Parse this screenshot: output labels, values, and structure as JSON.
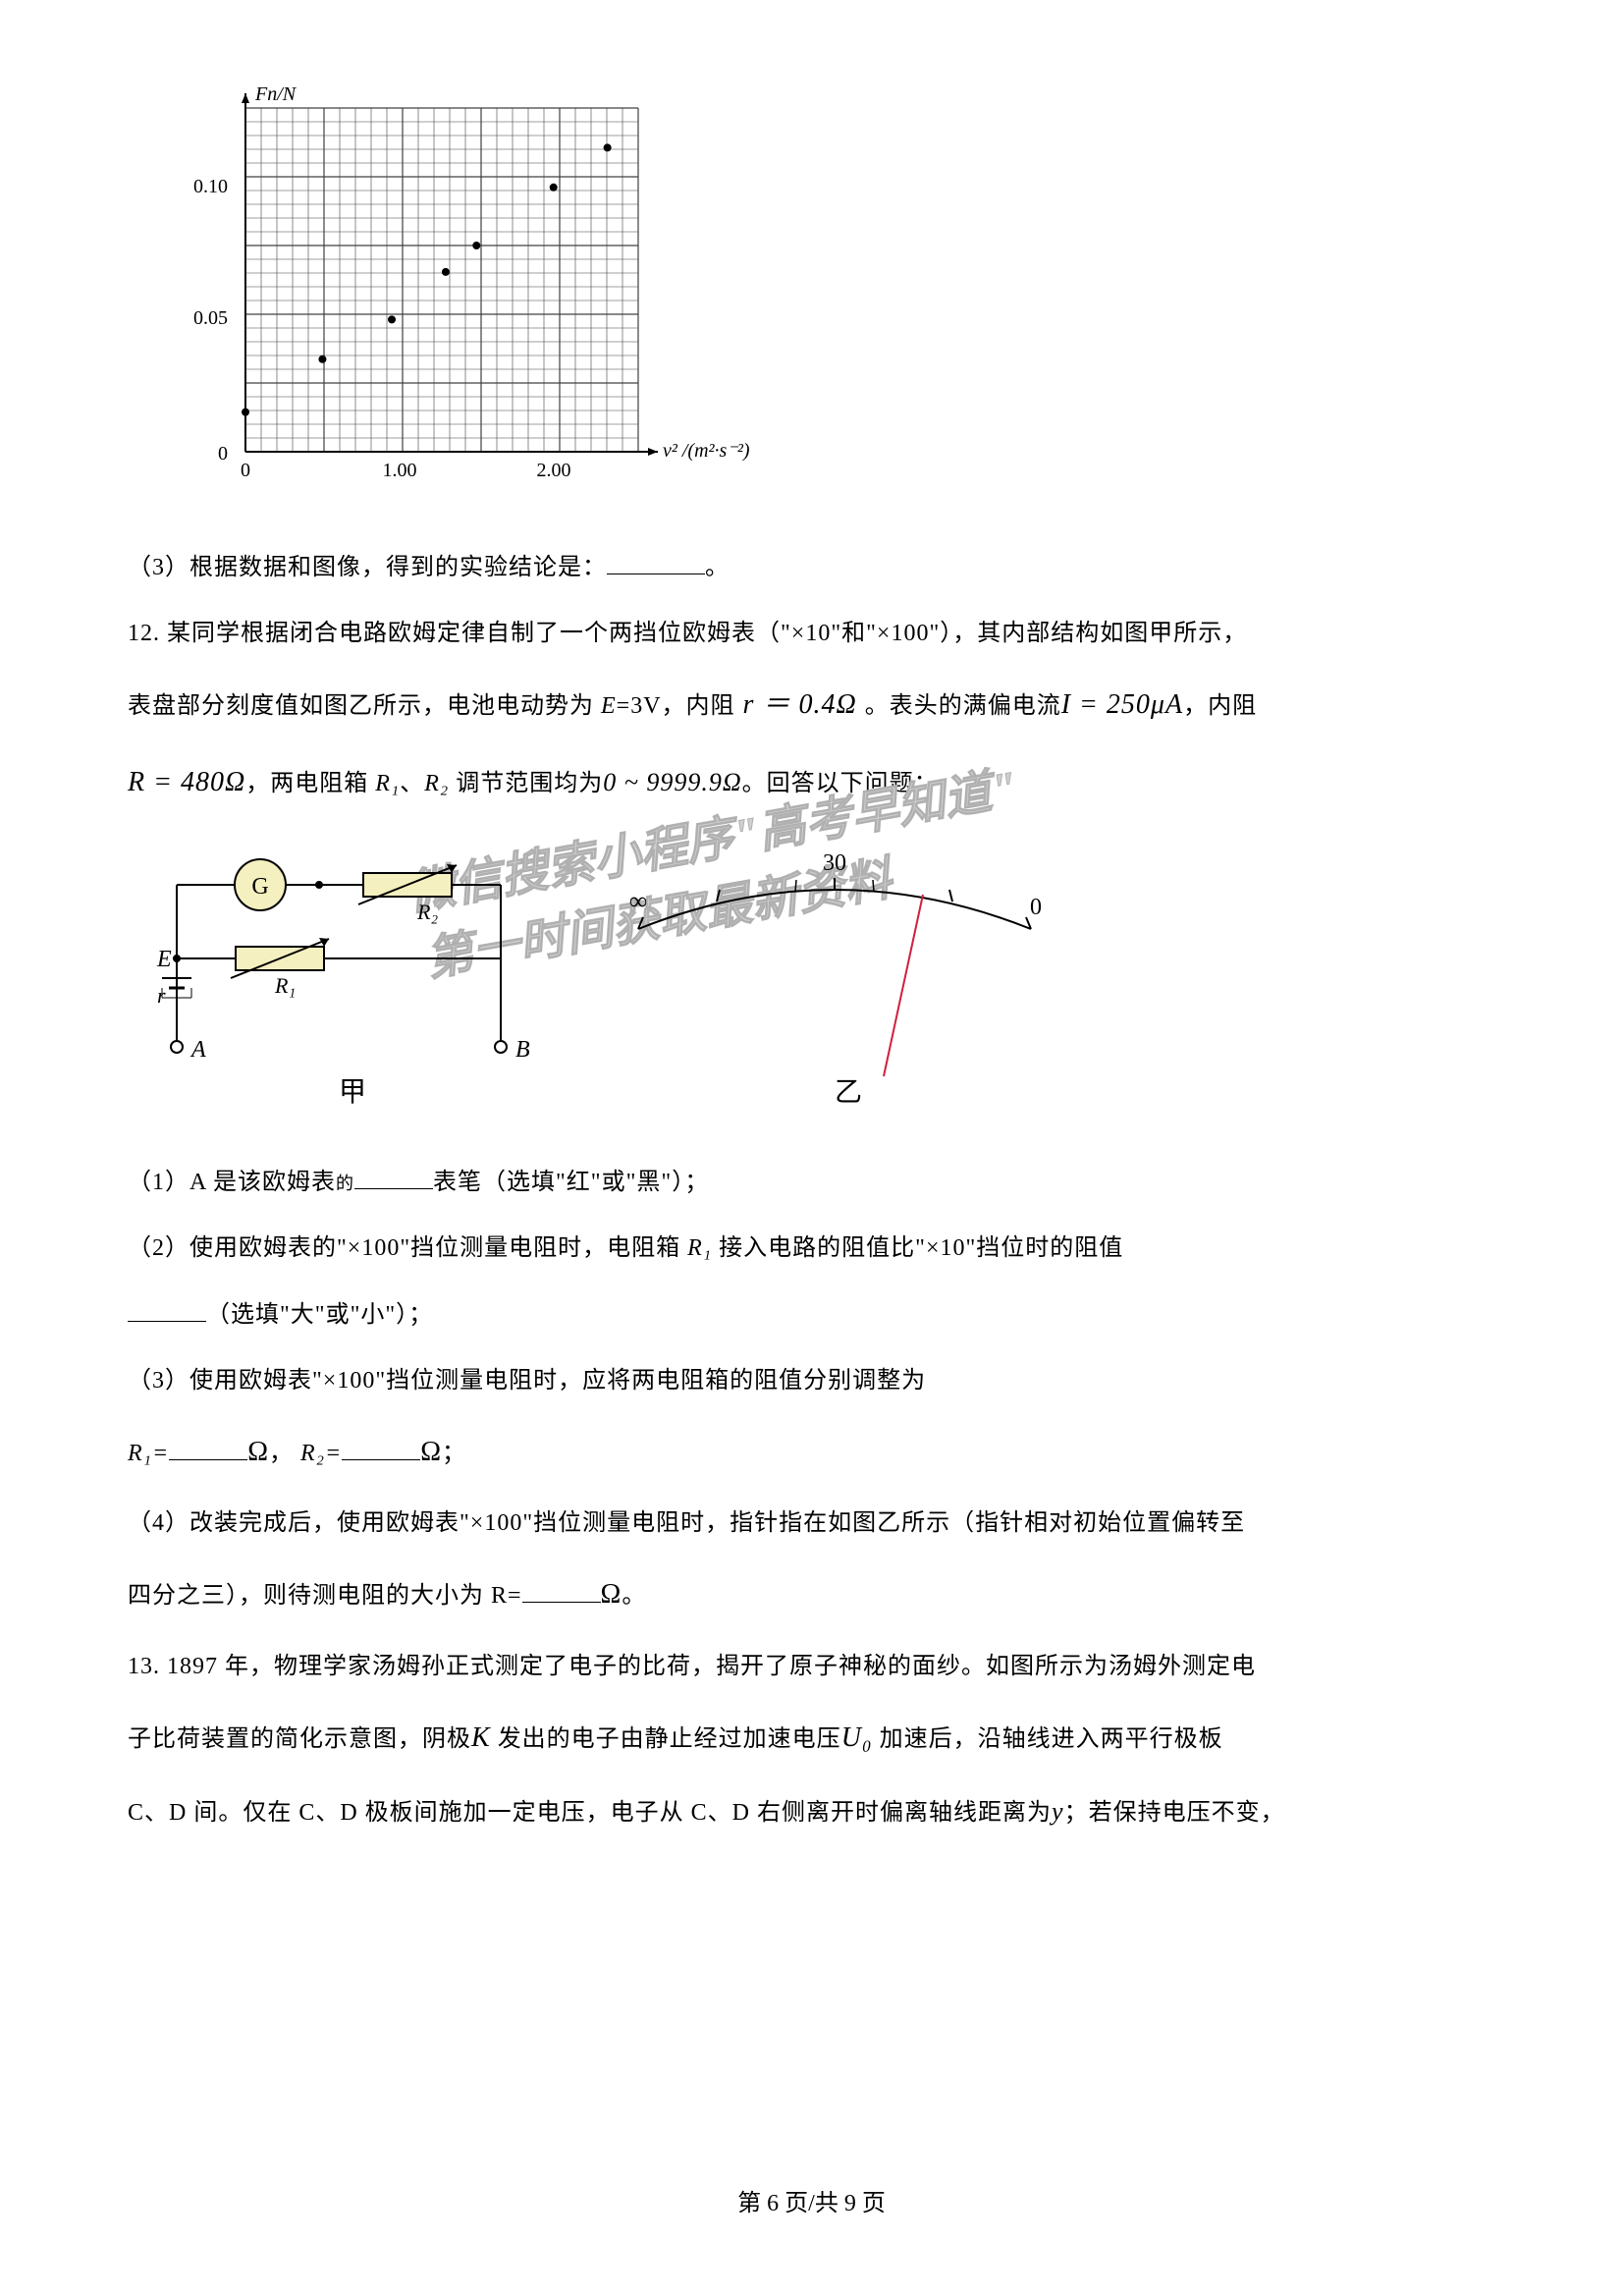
{
  "chart": {
    "type": "scatter",
    "y_label": "Fn/N",
    "x_label": "v² /(m²·s⁻²)",
    "y_ticks": [
      "0",
      "0.05",
      "0.10"
    ],
    "x_ticks": [
      "0",
      "1.00",
      "2.00"
    ],
    "y_max": 0.13,
    "x_max": 2.55,
    "major_x_divisions": 5,
    "major_y_divisions": 5,
    "minor_per_major": 5,
    "grid_color": "#404040",
    "axis_color": "#000000",
    "point_color": "#000000",
    "point_radius": 4,
    "points": [
      [
        0.0,
        0.015
      ],
      [
        0.5,
        0.035
      ],
      [
        0.95,
        0.05
      ],
      [
        1.3,
        0.068
      ],
      [
        1.5,
        0.078
      ],
      [
        2.0,
        0.1
      ],
      [
        2.35,
        0.115
      ]
    ]
  },
  "q3": {
    "prefix": "（3）根据数据和图像，得到的实验结论是：",
    "suffix": "。"
  },
  "q12": {
    "intro": "12. 某同学根据闭合电路欧姆定律自制了一个两挡位欧姆表（\"×10\"和\"×100\"），其内部结构如图甲所示，",
    "line2a": "表盘部分刻度值如图乙所示，电池电动势为 ",
    "line2b": "E",
    "line2c": "=3V，内阻",
    "line2d": " r ＝ 0.4Ω ",
    "line2e": "。表头的满偏电流",
    "line2f": "I = 250μA",
    "line2g": "，内阻",
    "line3a": "R = 480Ω",
    "line3b": "，两电阻箱 ",
    "line3c": "R₁",
    "line3d": "、",
    "line3e": "R₂",
    "line3f": " 调节范围均为",
    "line3g": "0 ~ 9999.9Ω",
    "line3h": "。回答以下问题：",
    "circuit": {
      "label_G": "G",
      "label_R1": "R₁",
      "label_R2": "R₂",
      "label_E": "E",
      "label_r": "r",
      "label_A": "A",
      "label_B": "B",
      "label_jia": "甲",
      "label_yi": "乙",
      "dial_inf": "∞",
      "dial_30": "30",
      "dial_0": "0",
      "box_fill": "#f5f0c0",
      "line_color": "#000000",
      "needle_color": "#d02040"
    },
    "sub1a": "（1）A 是该欧姆表",
    "sub1b": "的",
    "sub1c": "表笔（选填\"红\"或\"黑\"）；",
    "sub2a": "（2）使用欧姆表的\"×100\"挡位测量电阻时，电阻箱 ",
    "sub2b": "R₁",
    "sub2c": " 接入电路的阻值比\"×10\"挡位时的阻值",
    "sub2d": "（选填\"大\"或\"小\"）；",
    "sub3a": "（3）使用欧姆表\"×100\"挡位测量电阻时，应将两电阻箱的阻值分别调整为",
    "sub3b": "R₁=",
    "sub3c": "Ω",
    "sub3d": "，",
    "sub3e": "R₂=",
    "sub3f": "Ω",
    "sub3g": "；",
    "sub4a": "（4）改装完成后，使用欧姆表\"×100\"挡位测量电阻时，指针指在如图乙所示（指针相对初始位置偏转至",
    "sub4b": "四分之三），则待测电阻的大小为 R=",
    "sub4c": "Ω",
    "sub4d": "。"
  },
  "q13": {
    "line1": "13. 1897 年，物理学家汤姆孙正式测定了电子的比荷，揭开了原子神秘的面纱。如图所示为汤姆外测定电",
    "line2a": "子比荷装置的简化示意图，阴极",
    "line2b": "K",
    "line2c": " 发出的电子由静止经过加速电压",
    "line2d": "U₀",
    "line2e": " 加速后，沿轴线进入两平行极板",
    "line3a": "C、D 间。仅在 C、D 极板间施加一定电压，电子从 C、D 右侧离开时偏离轴线距离为",
    "line3b": "y",
    "line3c": "；若保持电压不变，"
  },
  "watermark": {
    "text1": "微信搜索小程序\"高考早知道\"",
    "text2": "第一时间获取最新资料"
  },
  "footer": "第 6 页/共 9 页"
}
